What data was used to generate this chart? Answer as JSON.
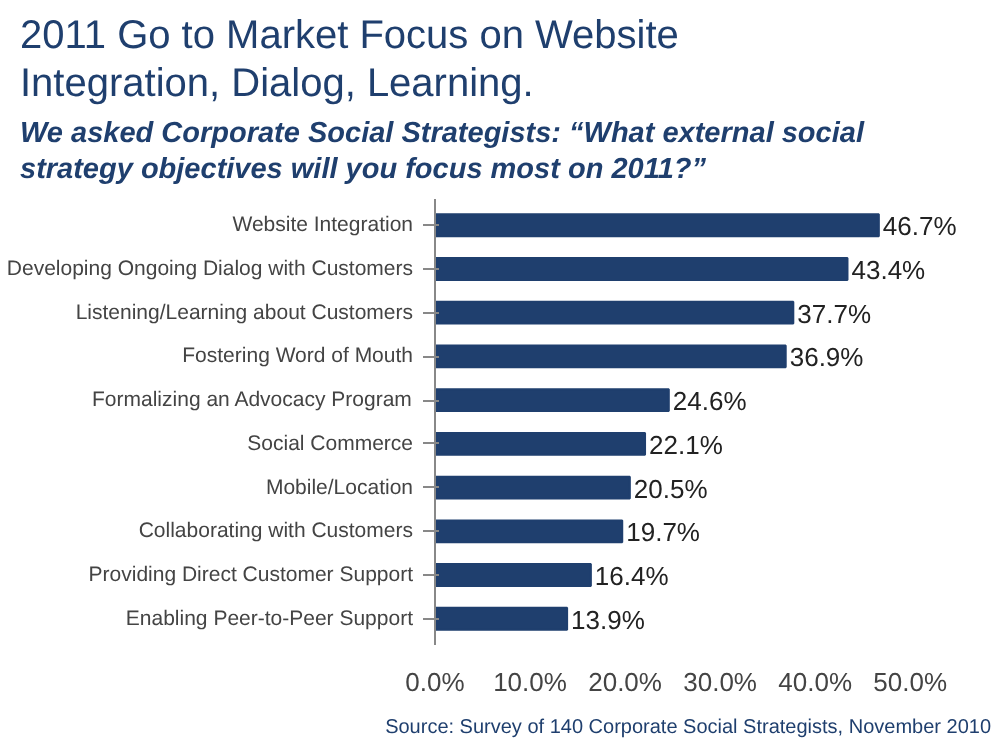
{
  "chart_data": {
    "type": "bar",
    "orientation": "horizontal",
    "title": "2011 Go to Market Focus on Website Integration, Dialog, Learning.",
    "subtitle": "We asked Corporate Social Strategists: “What external social strategy objectives will you focus most on 2011?”",
    "categories": [
      "Website Integration",
      "Developing Ongoing Dialog with Customers",
      "Listening/Learning about Customers",
      "Fostering Word of Mouth",
      "Formalizing an Advocacy Program",
      "Social Commerce",
      "Mobile/Location",
      "Collaborating with Customers",
      "Providing Direct Customer Support",
      "Enabling Peer-to-Peer Support"
    ],
    "values": [
      46.7,
      43.4,
      37.7,
      36.9,
      24.6,
      22.1,
      20.5,
      19.7,
      16.4,
      13.9
    ],
    "value_labels": [
      "46.7%",
      "43.4%",
      "37.7%",
      "36.9%",
      "24.6%",
      "22.1%",
      "20.5%",
      "19.7%",
      "16.4%",
      "13.9%"
    ],
    "color": "#1f3f6e",
    "xlim": [
      0,
      50
    ],
    "xticks": [
      {
        "value": 0,
        "label": "0.0%"
      },
      {
        "value": 10,
        "label": "10.0%"
      },
      {
        "value": 20,
        "label": "20.0%"
      },
      {
        "value": 30,
        "label": "30.0%"
      },
      {
        "value": 40,
        "label": "40.0%"
      },
      {
        "value": 50,
        "label": "50.0%"
      }
    ],
    "grid": false,
    "legend": false,
    "annotations": [
      "Source: Survey of 140 Corporate Social Strategists, November 2010"
    ]
  }
}
